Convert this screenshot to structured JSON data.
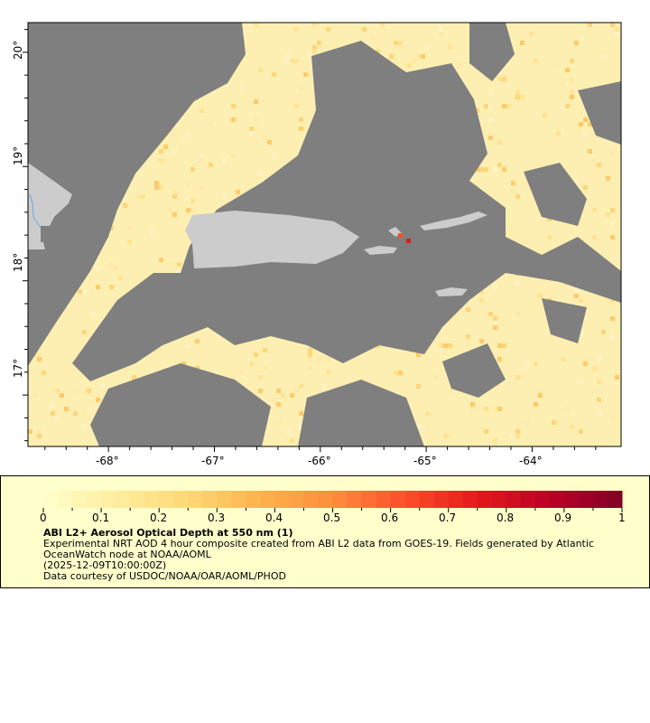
{
  "map": {
    "lat_ticks": [
      "20°",
      "19°",
      "18°",
      "17°"
    ],
    "lat_values": [
      20,
      19,
      18,
      17
    ],
    "lon_ticks": [
      "-68°",
      "-67°",
      "-66°",
      "-65°",
      "-64°"
    ],
    "lon_values": [
      -68,
      -67,
      -66,
      -65,
      -64
    ],
    "lat_range": [
      16.55,
      20.26
    ],
    "lon_range": [
      -68.76,
      -63.16
    ],
    "colors": {
      "no_data": "#7f7f7f",
      "land": "#cccccc",
      "low_aod": "#fdefb2",
      "river": "#6fa8dc"
    }
  },
  "legend": {
    "colorbar_ticks": [
      "0",
      "0.1",
      "0.2",
      "0.3",
      "0.4",
      "0.5",
      "0.6",
      "0.7",
      "0.8",
      "0.9",
      "1"
    ],
    "colorbar_range": [
      0,
      1
    ],
    "colorbar_colors": [
      "#ffffcc",
      "#ffeda0",
      "#fed976",
      "#feb24c",
      "#fd8d3c",
      "#fc4e2a",
      "#e31a1c",
      "#bd0026",
      "#800026"
    ],
    "title": "ABI L2+ Aerosol Optical Depth at 550 nm (1)",
    "description_line1": "Experimental NRT AOD 4 hour composite created from ABI L2 data from GOES-19. Fields generated by Atlantic",
    "description_line2": "OceanWatch node at NOAA/AOML",
    "time": "(2025-12-09T10:00:00Z)",
    "credit": "Data courtesy of USDOC/NOAA/OAR/AOML/PHOD"
  }
}
